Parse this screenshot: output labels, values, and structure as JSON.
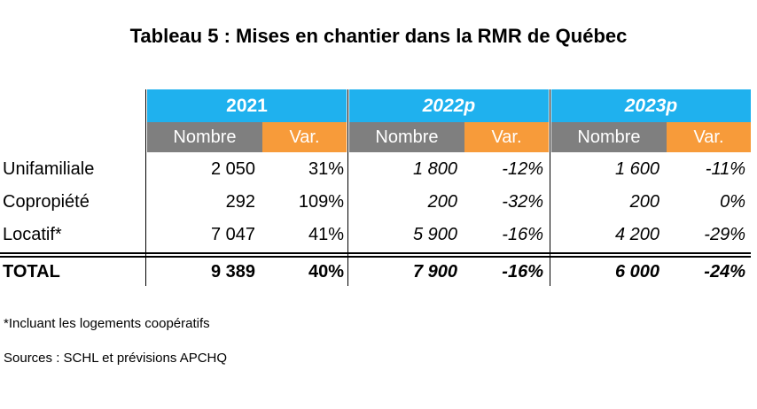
{
  "title": "Tableau 5 : Mises en chantier dans la RMR de Québec",
  "years": [
    "2021",
    "2022p",
    "2023p"
  ],
  "sub_headers": {
    "count": "Nombre",
    "var": "Var."
  },
  "rows": [
    {
      "label": "Unifamiliale",
      "values": [
        "2 050",
        "31%",
        "1 800",
        "-12%",
        "1 600",
        "-11%"
      ]
    },
    {
      "label": "Copropiété",
      "values": [
        "292",
        "109%",
        "200",
        "-32%",
        "200",
        "0%"
      ]
    },
    {
      "label": "Locatif*",
      "values": [
        "7 047",
        "41%",
        "5 900",
        "-16%",
        "4 200",
        "-29%"
      ]
    }
  ],
  "total": {
    "label": "TOTAL",
    "values": [
      "9 389",
      "40%",
      "7 900",
      "-16%",
      "6 000",
      "-24%"
    ]
  },
  "footnote": "*Incluant les logements coopératifs",
  "sources": "Sources : SCHL et prévisions APCHQ",
  "colors": {
    "year_header": "#1fb1ee",
    "count_header": "#7f7f7f",
    "var_header": "#f79b3a"
  }
}
